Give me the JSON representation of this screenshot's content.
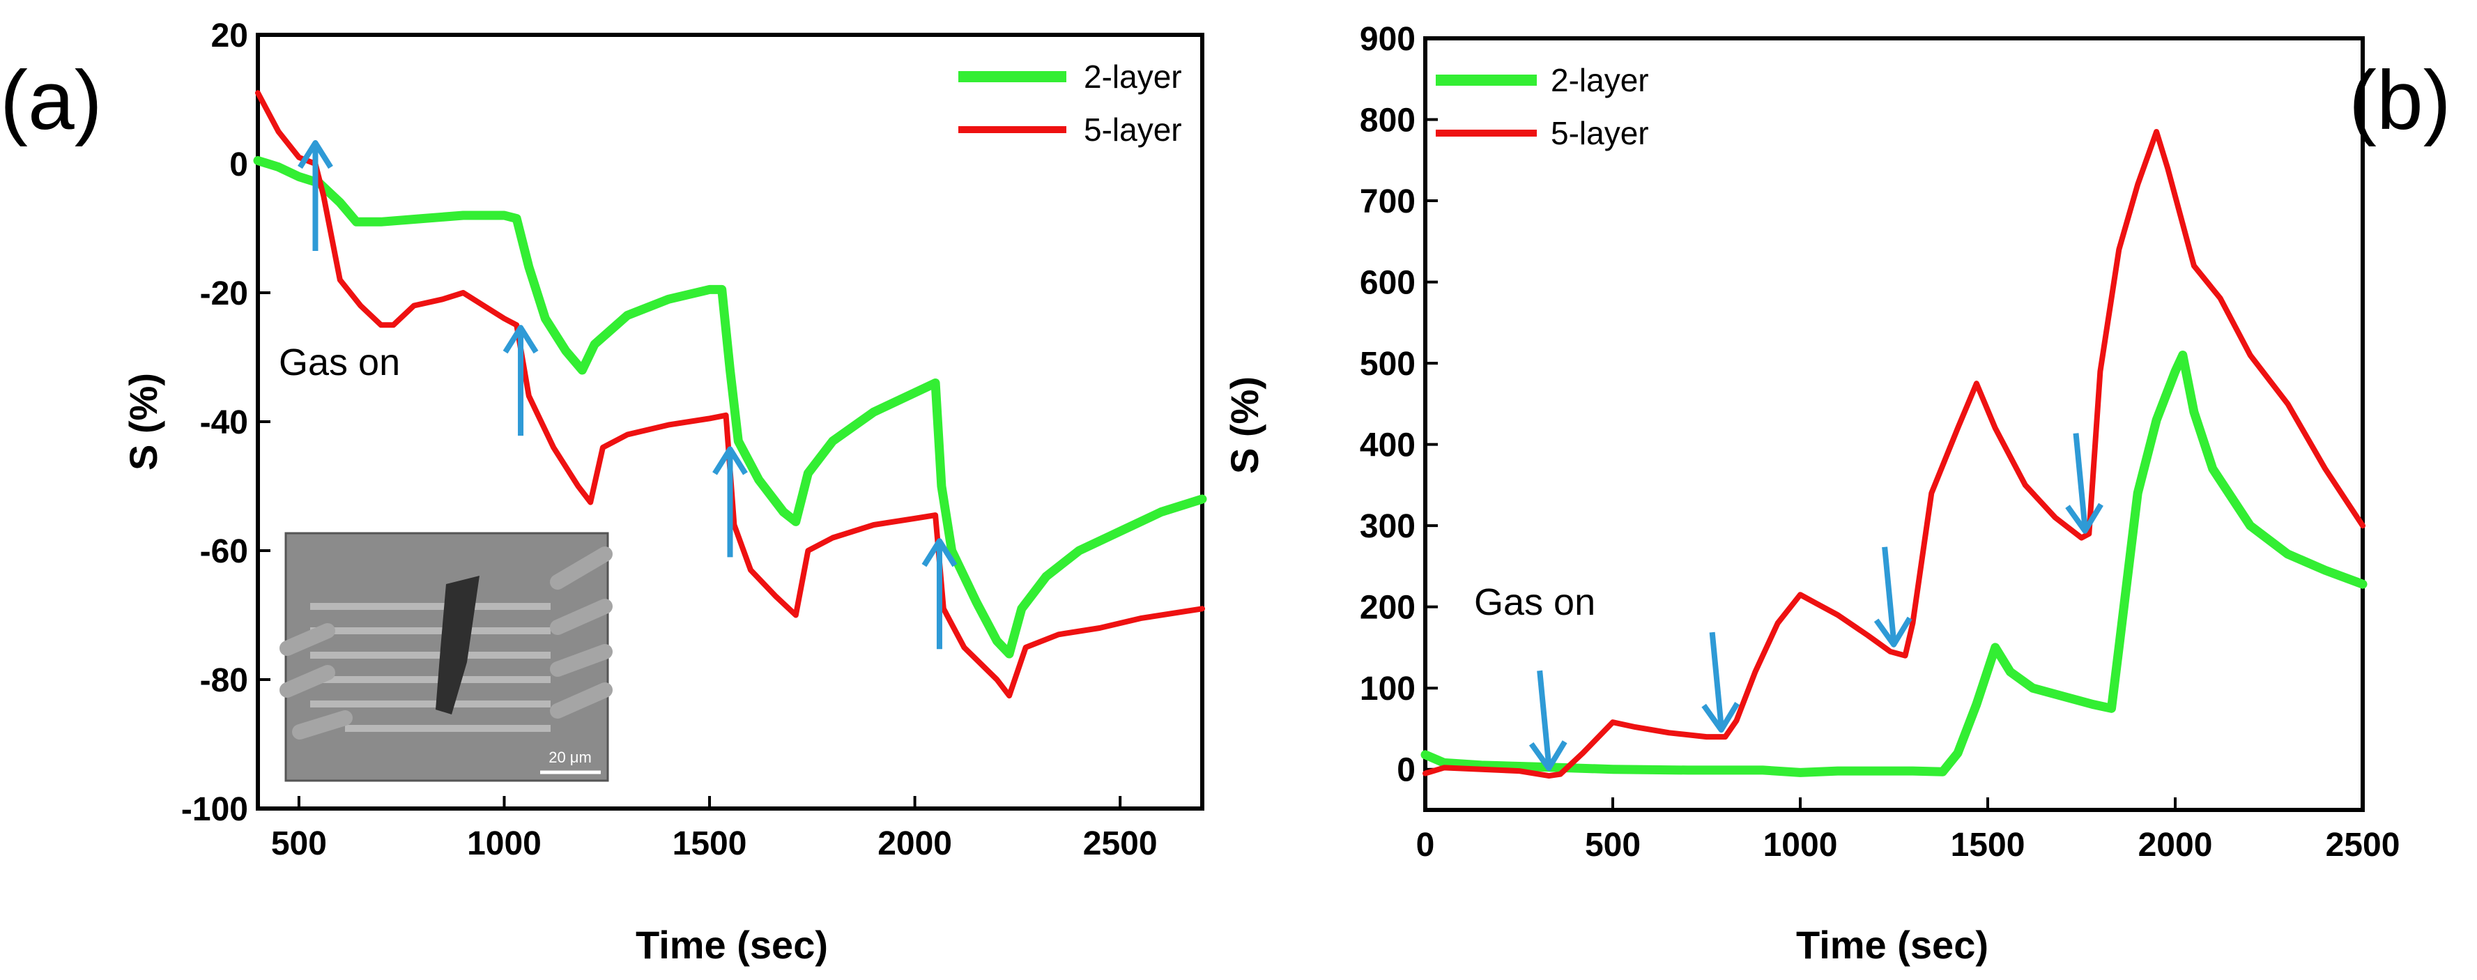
{
  "colors": {
    "axis": "#000000",
    "two_layer": "#33ee33",
    "five_layer": "#ee1111",
    "arrow": "#2e9ad6",
    "inset_bg": "#8a8a8a"
  },
  "chart_data": [
    {
      "type": "line",
      "panel_label": "(a)",
      "xlabel": "Time (sec)",
      "ylabel": "S (%)",
      "xlim": [
        400,
        2700
      ],
      "ylim": [
        -100,
        20
      ],
      "x_ticks": [
        500,
        1000,
        1500,
        2000,
        2500
      ],
      "y_ticks": [
        20,
        0,
        -20,
        -40,
        -60,
        -80,
        -100
      ],
      "grid": false,
      "legend_position": "top-right",
      "annotation": "Gas on",
      "inset_scale_label": "20 μm",
      "arrow_times": [
        540,
        1040,
        1550,
        2060
      ],
      "series": [
        {
          "name": "2-layer",
          "color_key": "two_layer",
          "points": [
            [
              400,
              0.5
            ],
            [
              450,
              -0.5
            ],
            [
              500,
              -2
            ],
            [
              550,
              -3
            ],
            [
              600,
              -6
            ],
            [
              640,
              -9
            ],
            [
              700,
              -9
            ],
            [
              800,
              -8.5
            ],
            [
              900,
              -8
            ],
            [
              1000,
              -8
            ],
            [
              1030,
              -8.5
            ],
            [
              1060,
              -16
            ],
            [
              1100,
              -24
            ],
            [
              1150,
              -29
            ],
            [
              1190,
              -32
            ],
            [
              1220,
              -28
            ],
            [
              1300,
              -23.5
            ],
            [
              1400,
              -21
            ],
            [
              1500,
              -19.5
            ],
            [
              1530,
              -19.5
            ],
            [
              1550,
              -32
            ],
            [
              1570,
              -43
            ],
            [
              1620,
              -49
            ],
            [
              1680,
              -54
            ],
            [
              1710,
              -55.5
            ],
            [
              1740,
              -48
            ],
            [
              1800,
              -43
            ],
            [
              1900,
              -38.5
            ],
            [
              2000,
              -35.5
            ],
            [
              2050,
              -34
            ],
            [
              2065,
              -50
            ],
            [
              2090,
              -60
            ],
            [
              2150,
              -68
            ],
            [
              2200,
              -74
            ],
            [
              2230,
              -76
            ],
            [
              2260,
              -69
            ],
            [
              2320,
              -64
            ],
            [
              2400,
              -60
            ],
            [
              2500,
              -57
            ],
            [
              2600,
              -54
            ],
            [
              2700,
              -52
            ]
          ]
        },
        {
          "name": "5-layer",
          "color_key": "five_layer",
          "points": [
            [
              400,
              11
            ],
            [
              450,
              5
            ],
            [
              500,
              1
            ],
            [
              540,
              0
            ],
            [
              560,
              -5
            ],
            [
              600,
              -18
            ],
            [
              650,
              -22
            ],
            [
              700,
              -25
            ],
            [
              730,
              -25
            ],
            [
              780,
              -22
            ],
            [
              850,
              -21
            ],
            [
              900,
              -20
            ],
            [
              950,
              -22
            ],
            [
              1000,
              -24
            ],
            [
              1030,
              -25
            ],
            [
              1060,
              -36
            ],
            [
              1120,
              -44
            ],
            [
              1180,
              -50
            ],
            [
              1210,
              -52.5
            ],
            [
              1240,
              -44
            ],
            [
              1300,
              -42
            ],
            [
              1400,
              -40.5
            ],
            [
              1500,
              -39.5
            ],
            [
              1540,
              -39
            ],
            [
              1560,
              -56
            ],
            [
              1600,
              -63
            ],
            [
              1660,
              -67
            ],
            [
              1710,
              -70
            ],
            [
              1740,
              -60
            ],
            [
              1800,
              -58
            ],
            [
              1900,
              -56
            ],
            [
              2000,
              -55
            ],
            [
              2050,
              -54.5
            ],
            [
              2070,
              -69
            ],
            [
              2120,
              -75
            ],
            [
              2200,
              -80
            ],
            [
              2230,
              -82.5
            ],
            [
              2270,
              -75
            ],
            [
              2350,
              -73
            ],
            [
              2450,
              -72
            ],
            [
              2550,
              -70.5
            ],
            [
              2700,
              -69
            ]
          ]
        }
      ]
    },
    {
      "type": "line",
      "panel_label": "(b)",
      "xlabel": "Time (sec)",
      "ylabel": "S (%)",
      "xlim": [
        0,
        2500
      ],
      "ylim": [
        -50,
        900
      ],
      "x_ticks": [
        0,
        500,
        1000,
        1500,
        2000,
        2500
      ],
      "y_ticks": [
        900,
        800,
        700,
        600,
        500,
        400,
        300,
        200,
        100,
        0
      ],
      "grid": false,
      "legend_position": "top-left",
      "annotation": "Gas on",
      "arrow_times": [
        320,
        780,
        1240,
        1750
      ],
      "series": [
        {
          "name": "2-layer",
          "color_key": "two_layer",
          "points": [
            [
              0,
              18
            ],
            [
              50,
              8
            ],
            [
              150,
              5
            ],
            [
              300,
              3
            ],
            [
              500,
              0
            ],
            [
              700,
              -1
            ],
            [
              900,
              -1
            ],
            [
              1000,
              -4
            ],
            [
              1100,
              -2
            ],
            [
              1300,
              -2
            ],
            [
              1380,
              -3
            ],
            [
              1420,
              20
            ],
            [
              1470,
              80
            ],
            [
              1520,
              150
            ],
            [
              1560,
              120
            ],
            [
              1620,
              100
            ],
            [
              1700,
              90
            ],
            [
              1780,
              80
            ],
            [
              1830,
              75
            ],
            [
              1850,
              150
            ],
            [
              1900,
              340
            ],
            [
              1950,
              430
            ],
            [
              2000,
              490
            ],
            [
              2020,
              510
            ],
            [
              2050,
              440
            ],
            [
              2100,
              370
            ],
            [
              2200,
              300
            ],
            [
              2300,
              265
            ],
            [
              2400,
              245
            ],
            [
              2500,
              228
            ]
          ]
        },
        {
          "name": "5-layer",
          "color_key": "five_layer",
          "points": [
            [
              0,
              -5
            ],
            [
              50,
              2
            ],
            [
              150,
              0
            ],
            [
              250,
              -2
            ],
            [
              330,
              -8
            ],
            [
              360,
              -6
            ],
            [
              420,
              20
            ],
            [
              500,
              58
            ],
            [
              560,
              52
            ],
            [
              650,
              45
            ],
            [
              750,
              40
            ],
            [
              800,
              40
            ],
            [
              830,
              60
            ],
            [
              880,
              120
            ],
            [
              940,
              180
            ],
            [
              1000,
              215
            ],
            [
              1040,
              205
            ],
            [
              1100,
              190
            ],
            [
              1180,
              165
            ],
            [
              1240,
              145
            ],
            [
              1280,
              140
            ],
            [
              1300,
              180
            ],
            [
              1350,
              340
            ],
            [
              1420,
              420
            ],
            [
              1470,
              475
            ],
            [
              1520,
              420
            ],
            [
              1600,
              350
            ],
            [
              1680,
              310
            ],
            [
              1750,
              285
            ],
            [
              1770,
              290
            ],
            [
              1800,
              490
            ],
            [
              1850,
              640
            ],
            [
              1900,
              720
            ],
            [
              1950,
              785
            ],
            [
              1980,
              740
            ],
            [
              2050,
              620
            ],
            [
              2120,
              580
            ],
            [
              2200,
              510
            ],
            [
              2300,
              450
            ],
            [
              2400,
              370
            ],
            [
              2500,
              300
            ]
          ]
        }
      ]
    }
  ]
}
